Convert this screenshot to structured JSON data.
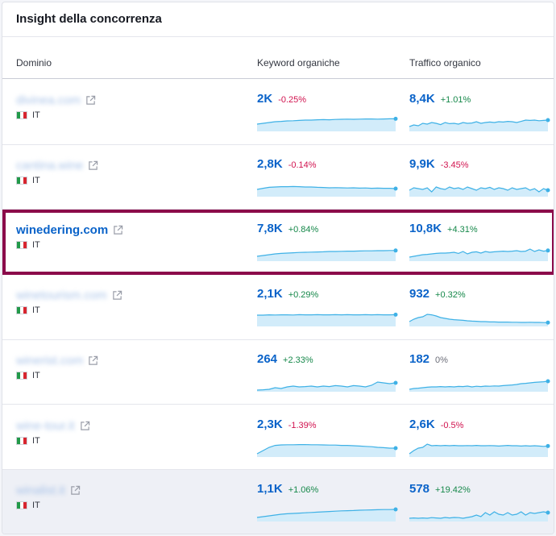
{
  "title": "Insight della concorrenza",
  "columns": {
    "domain": "Dominio",
    "keywords": "Keyword organiche",
    "traffic": "Traffico organico"
  },
  "colors": {
    "accent": "#0a63c9",
    "positive": "#16884a",
    "negative": "#d1134f",
    "highlight_border": "#8b0b4a",
    "spark_line": "#3eb1e6",
    "spark_fill": "#d2ecfa"
  },
  "rows": [
    {
      "domain": "divinea.com",
      "blurred": true,
      "country": "IT",
      "keywords": {
        "value": "2K",
        "change": "-0.25%",
        "trend": "neg",
        "spark": [
          0.45,
          0.5,
          0.55,
          0.6,
          0.62,
          0.65,
          0.66,
          0.68,
          0.7,
          0.7,
          0.72,
          0.73,
          0.72,
          0.74,
          0.75,
          0.76,
          0.75,
          0.76,
          0.77,
          0.77,
          0.76,
          0.77,
          0.78,
          0.78
        ]
      },
      "traffic": {
        "value": "8,4K",
        "change": "+1.01%",
        "trend": "pos",
        "spark": [
          0.3,
          0.4,
          0.35,
          0.5,
          0.45,
          0.55,
          0.5,
          0.42,
          0.55,
          0.48,
          0.5,
          0.45,
          0.55,
          0.5,
          0.52,
          0.6,
          0.5,
          0.55,
          0.58,
          0.55,
          0.6,
          0.58,
          0.62,
          0.6,
          0.55,
          0.62,
          0.7,
          0.68,
          0.7,
          0.66,
          0.68,
          0.7
        ]
      }
    },
    {
      "domain": "cantina.wine",
      "blurred": true,
      "country": "IT",
      "keywords": {
        "value": "2,8K",
        "change": "-0.14%",
        "trend": "neg",
        "spark": [
          0.45,
          0.52,
          0.58,
          0.6,
          0.62,
          0.62,
          0.63,
          0.62,
          0.6,
          0.6,
          0.58,
          0.57,
          0.55,
          0.56,
          0.55,
          0.54,
          0.55,
          0.53,
          0.54,
          0.52,
          0.53,
          0.52,
          0.52,
          0.5
        ]
      },
      "traffic": {
        "value": "9,9K",
        "change": "-3.45%",
        "trend": "neg",
        "spark": [
          0.4,
          0.55,
          0.5,
          0.45,
          0.55,
          0.3,
          0.6,
          0.5,
          0.45,
          0.6,
          0.5,
          0.55,
          0.45,
          0.6,
          0.5,
          0.4,
          0.55,
          0.5,
          0.58,
          0.45,
          0.55,
          0.5,
          0.4,
          0.55,
          0.45,
          0.5,
          0.55,
          0.4,
          0.5,
          0.3,
          0.5,
          0.4
        ]
      }
    },
    {
      "domain": "winedering.com",
      "blurred": false,
      "highlight": true,
      "country": "IT",
      "keywords": {
        "value": "7,8K",
        "change": "+0.84%",
        "trend": "pos",
        "spark": [
          0.3,
          0.35,
          0.4,
          0.45,
          0.48,
          0.5,
          0.52,
          0.54,
          0.55,
          0.56,
          0.57,
          0.58,
          0.6,
          0.6,
          0.61,
          0.62,
          0.62,
          0.63,
          0.64,
          0.64,
          0.65,
          0.65,
          0.66,
          0.66
        ]
      },
      "traffic": {
        "value": "10,8K",
        "change": "+4.31%",
        "trend": "pos",
        "spark": [
          0.25,
          0.3,
          0.35,
          0.4,
          0.42,
          0.45,
          0.48,
          0.5,
          0.5,
          0.52,
          0.55,
          0.48,
          0.6,
          0.45,
          0.55,
          0.58,
          0.5,
          0.6,
          0.55,
          0.58,
          0.6,
          0.62,
          0.6,
          0.62,
          0.65,
          0.6,
          0.62,
          0.75,
          0.6,
          0.7,
          0.62,
          0.66
        ]
      }
    },
    {
      "domain": "winetourism.com",
      "blurred": true,
      "country": "IT",
      "keywords": {
        "value": "2,1K",
        "change": "+0.29%",
        "trend": "pos",
        "spark": [
          0.7,
          0.7,
          0.72,
          0.71,
          0.72,
          0.72,
          0.71,
          0.73,
          0.72,
          0.72,
          0.73,
          0.72,
          0.72,
          0.73,
          0.72,
          0.73,
          0.72,
          0.72,
          0.73,
          0.72,
          0.73,
          0.72,
          0.72,
          0.73
        ]
      },
      "traffic": {
        "value": "932",
        "change": "+0.32%",
        "trend": "pos",
        "spark": [
          0.3,
          0.45,
          0.55,
          0.6,
          0.75,
          0.72,
          0.65,
          0.55,
          0.5,
          0.45,
          0.42,
          0.4,
          0.38,
          0.35,
          0.33,
          0.32,
          0.3,
          0.3,
          0.28,
          0.28,
          0.27,
          0.27,
          0.27,
          0.26,
          0.26,
          0.25,
          0.25,
          0.26,
          0.25,
          0.25,
          0.24,
          0.24
        ]
      }
    },
    {
      "domain": "winerist.com",
      "blurred": true,
      "country": "IT",
      "keywords": {
        "value": "264",
        "change": "+2.33%",
        "trend": "pos",
        "spark": [
          0.1,
          0.12,
          0.15,
          0.25,
          0.2,
          0.3,
          0.35,
          0.3,
          0.32,
          0.35,
          0.3,
          0.35,
          0.32,
          0.38,
          0.35,
          0.3,
          0.38,
          0.35,
          0.3,
          0.4,
          0.6,
          0.55,
          0.5,
          0.55
        ]
      },
      "traffic": {
        "value": "182",
        "change": "0%",
        "trend": "neu",
        "spark": [
          0.15,
          0.2,
          0.22,
          0.25,
          0.28,
          0.3,
          0.3,
          0.32,
          0.3,
          0.32,
          0.3,
          0.33,
          0.32,
          0.35,
          0.3,
          0.34,
          0.32,
          0.35,
          0.34,
          0.36,
          0.35,
          0.38,
          0.4,
          0.42,
          0.45,
          0.5,
          0.52,
          0.55,
          0.58,
          0.6,
          0.62,
          0.65
        ]
      }
    },
    {
      "domain": "wine-tour.it",
      "blurred": true,
      "country": "IT",
      "keywords": {
        "value": "2,3K",
        "change": "-1.39%",
        "trend": "neg",
        "spark": [
          0.2,
          0.4,
          0.6,
          0.72,
          0.75,
          0.76,
          0.76,
          0.77,
          0.77,
          0.76,
          0.76,
          0.75,
          0.74,
          0.74,
          0.72,
          0.72,
          0.7,
          0.68,
          0.66,
          0.64,
          0.6,
          0.58,
          0.55,
          0.55
        ]
      },
      "traffic": {
        "value": "2,6K",
        "change": "-0.5%",
        "trend": "neg",
        "spark": [
          0.2,
          0.4,
          0.55,
          0.6,
          0.8,
          0.7,
          0.72,
          0.7,
          0.72,
          0.7,
          0.72,
          0.7,
          0.7,
          0.71,
          0.7,
          0.72,
          0.7,
          0.7,
          0.71,
          0.7,
          0.68,
          0.7,
          0.72,
          0.7,
          0.7,
          0.68,
          0.7,
          0.68,
          0.7,
          0.68,
          0.66,
          0.68
        ]
      }
    },
    {
      "domain": "winalist.it",
      "blurred": true,
      "alt": true,
      "country": "IT",
      "keywords": {
        "value": "1,1K",
        "change": "+1.06%",
        "trend": "pos",
        "spark": [
          0.25,
          0.3,
          0.35,
          0.4,
          0.45,
          0.48,
          0.5,
          0.52,
          0.54,
          0.56,
          0.58,
          0.6,
          0.62,
          0.64,
          0.66,
          0.67,
          0.68,
          0.7,
          0.71,
          0.72,
          0.73,
          0.74,
          0.74,
          0.75
        ]
      },
      "traffic": {
        "value": "578",
        "change": "+19.42%",
        "trend": "pos",
        "spark": [
          0.2,
          0.22,
          0.2,
          0.22,
          0.2,
          0.24,
          0.22,
          0.2,
          0.25,
          0.22,
          0.25,
          0.24,
          0.2,
          0.25,
          0.3,
          0.4,
          0.3,
          0.55,
          0.4,
          0.6,
          0.45,
          0.4,
          0.55,
          0.4,
          0.45,
          0.6,
          0.4,
          0.55,
          0.5,
          0.55,
          0.6,
          0.55
        ]
      }
    }
  ]
}
